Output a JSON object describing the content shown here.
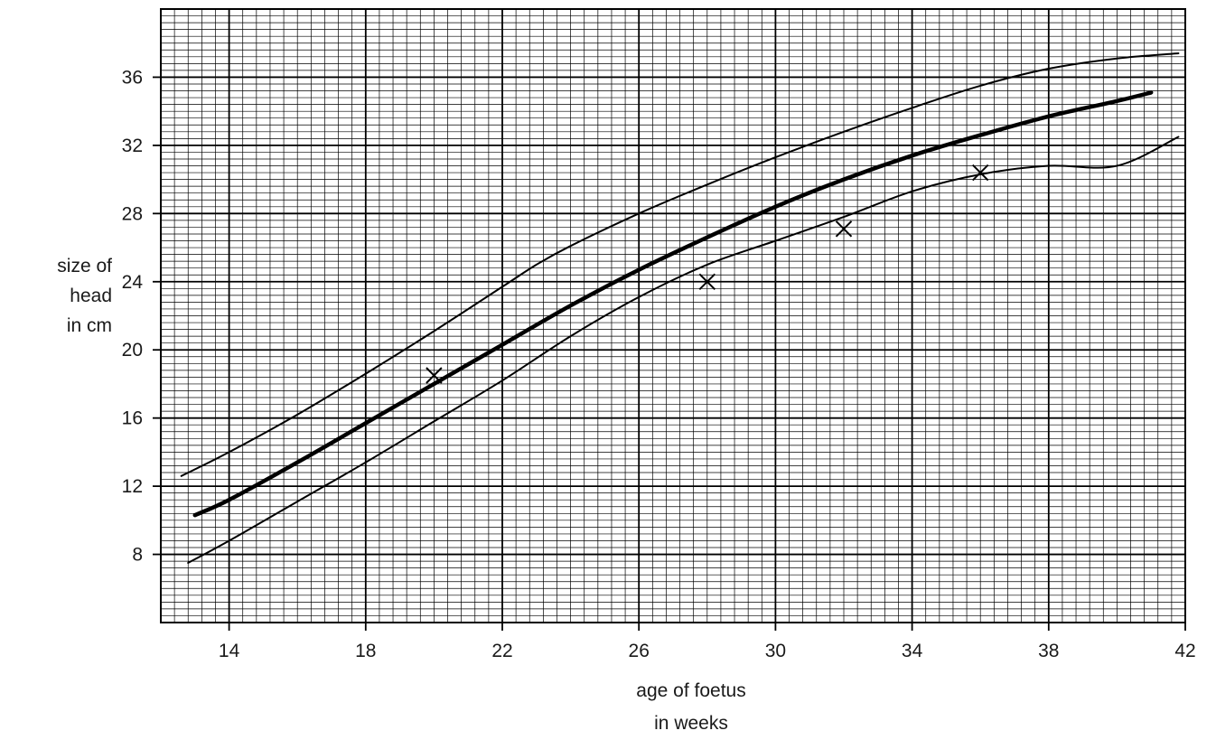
{
  "chart_data": {
    "type": "line",
    "xlabel": [
      "age of foetus",
      "in weeks"
    ],
    "ylabel": [
      "size of",
      "head",
      "in cm"
    ],
    "xlim": [
      12,
      42
    ],
    "ylim": [
      4,
      40
    ],
    "xticks": [
      14,
      18,
      22,
      26,
      30,
      34,
      38,
      42
    ],
    "yticks": [
      8,
      12,
      16,
      20,
      24,
      28,
      32,
      36
    ],
    "grid": true,
    "grid_minor_step": {
      "x": 0.4,
      "y": 0.4
    },
    "grid_major_step": {
      "x": 4,
      "y": 4
    },
    "series": [
      {
        "style": "thin",
        "x": [
          12.6,
          14,
          16,
          18,
          20,
          22,
          23,
          24,
          26,
          28,
          30,
          32,
          34,
          36,
          38,
          40,
          41.8
        ],
        "y": [
          12.6,
          14.0,
          16.2,
          18.6,
          21.1,
          23.7,
          25.0,
          26.1,
          28.0,
          29.7,
          31.3,
          32.8,
          34.2,
          35.5,
          36.5,
          37.1,
          37.4
        ]
      },
      {
        "style": "thick",
        "x": [
          13,
          14,
          16,
          18,
          20,
          22,
          24,
          26,
          28,
          30,
          32,
          34,
          36,
          38,
          40,
          41
        ],
        "y": [
          10.3,
          11.2,
          13.4,
          15.7,
          18.0,
          20.3,
          22.6,
          24.7,
          26.6,
          28.4,
          30.0,
          31.4,
          32.6,
          33.7,
          34.6,
          35.1
        ]
      },
      {
        "style": "thin",
        "x": [
          12.8,
          14,
          16,
          18,
          20,
          22,
          24,
          26,
          28,
          30,
          32,
          34,
          36,
          38,
          40,
          41.8
        ],
        "y": [
          7.5,
          8.8,
          11.1,
          13.4,
          15.8,
          18.2,
          20.8,
          23.1,
          25.0,
          26.4,
          27.8,
          29.3,
          30.3,
          30.8,
          30.8,
          32.5
        ]
      }
    ],
    "points": [
      {
        "x": 20,
        "y": 18.5
      },
      {
        "x": 28,
        "y": 24.0
      },
      {
        "x": 32,
        "y": 27.1
      },
      {
        "x": 36,
        "y": 30.4
      }
    ]
  }
}
